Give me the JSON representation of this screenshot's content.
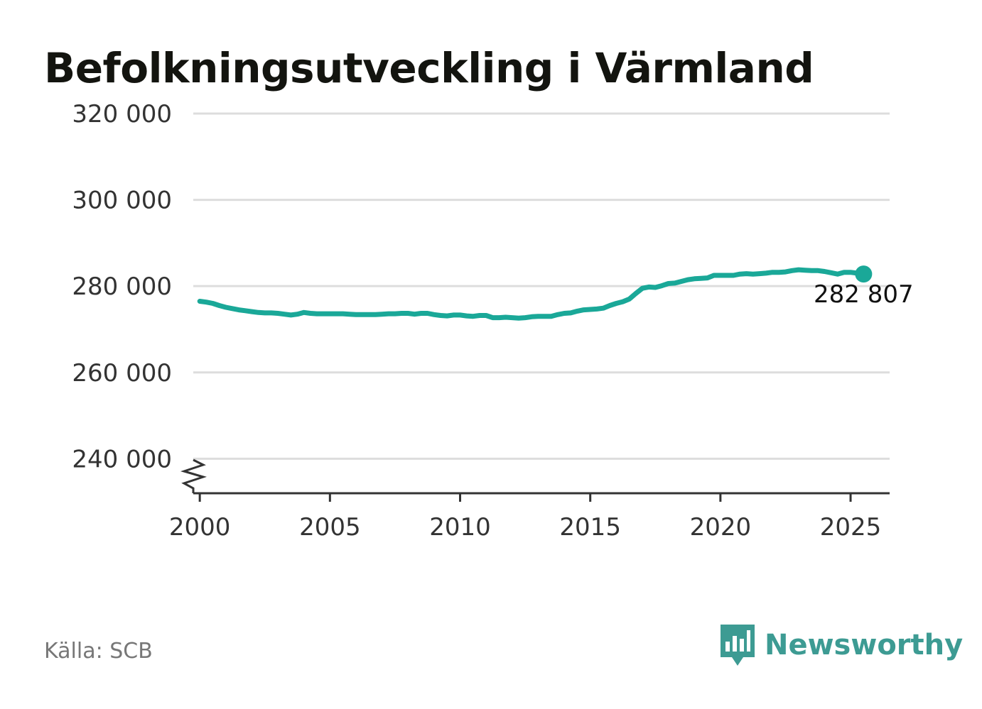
{
  "title": "Befolkningsutveckling i Värmland",
  "source": "Källa: SCB",
  "brand": {
    "name": "Newsworthy",
    "color": "#3d9b93",
    "icon": "newsworthy-logo-icon"
  },
  "colors": {
    "line": "#1aa898",
    "grid": "#dddddd",
    "axis": "#333333"
  },
  "chart_data": {
    "type": "line",
    "title": "Befolkningsutveckling i Värmland",
    "xlabel": "",
    "ylabel": "",
    "xlim": [
      1999.75,
      2026.5
    ],
    "ylim": [
      232000,
      320000
    ],
    "y_axis_break": true,
    "grid": true,
    "x_ticks": [
      2000,
      2005,
      2010,
      2015,
      2020,
      2025
    ],
    "x_tick_labels": [
      "2000",
      "2005",
      "2010",
      "2015",
      "2020",
      "2025"
    ],
    "y_ticks": [
      240000,
      260000,
      280000,
      300000,
      320000
    ],
    "y_tick_labels": [
      "240 000",
      "260 000",
      "280 000",
      "300 000",
      "320 000"
    ],
    "end_label": "282 807",
    "series": [
      {
        "values": [
          [
            2000.0,
            276500
          ],
          [
            2000.25,
            276300
          ],
          [
            2000.5,
            276000
          ],
          [
            2000.75,
            275500
          ],
          [
            2001.0,
            275100
          ],
          [
            2001.25,
            274800
          ],
          [
            2001.5,
            274500
          ],
          [
            2001.75,
            274300
          ],
          [
            2002.0,
            274100
          ],
          [
            2002.25,
            273900
          ],
          [
            2002.5,
            273800
          ],
          [
            2002.75,
            273800
          ],
          [
            2003.0,
            273700
          ],
          [
            2003.25,
            273500
          ],
          [
            2003.5,
            273300
          ],
          [
            2003.75,
            273500
          ],
          [
            2004.0,
            273900
          ],
          [
            2004.25,
            273700
          ],
          [
            2004.5,
            273600
          ],
          [
            2004.75,
            273600
          ],
          [
            2005.0,
            273600
          ],
          [
            2005.25,
            273600
          ],
          [
            2005.5,
            273600
          ],
          [
            2005.75,
            273500
          ],
          [
            2006.0,
            273400
          ],
          [
            2006.25,
            273400
          ],
          [
            2006.5,
            273400
          ],
          [
            2006.75,
            273400
          ],
          [
            2007.0,
            273500
          ],
          [
            2007.25,
            273600
          ],
          [
            2007.5,
            273600
          ],
          [
            2007.75,
            273700
          ],
          [
            2008.0,
            273700
          ],
          [
            2008.25,
            273500
          ],
          [
            2008.5,
            273700
          ],
          [
            2008.75,
            273700
          ],
          [
            2009.0,
            273400
          ],
          [
            2009.25,
            273200
          ],
          [
            2009.5,
            273100
          ],
          [
            2009.75,
            273300
          ],
          [
            2010.0,
            273300
          ],
          [
            2010.25,
            273100
          ],
          [
            2010.5,
            273000
          ],
          [
            2010.75,
            273200
          ],
          [
            2011.0,
            273200
          ],
          [
            2011.25,
            272700
          ],
          [
            2011.5,
            272700
          ],
          [
            2011.75,
            272800
          ],
          [
            2012.0,
            272700
          ],
          [
            2012.25,
            272600
          ],
          [
            2012.5,
            272700
          ],
          [
            2012.75,
            272900
          ],
          [
            2013.0,
            273000
          ],
          [
            2013.25,
            273000
          ],
          [
            2013.5,
            273000
          ],
          [
            2013.75,
            273400
          ],
          [
            2014.0,
            273700
          ],
          [
            2014.25,
            273800
          ],
          [
            2014.5,
            274200
          ],
          [
            2014.75,
            274500
          ],
          [
            2015.0,
            274600
          ],
          [
            2015.25,
            274700
          ],
          [
            2015.5,
            274900
          ],
          [
            2015.75,
            275500
          ],
          [
            2016.0,
            276000
          ],
          [
            2016.25,
            276400
          ],
          [
            2016.5,
            277000
          ],
          [
            2016.75,
            278300
          ],
          [
            2017.0,
            279500
          ],
          [
            2017.25,
            279800
          ],
          [
            2017.5,
            279700
          ],
          [
            2017.75,
            280100
          ],
          [
            2018.0,
            280600
          ],
          [
            2018.25,
            280700
          ],
          [
            2018.5,
            281100
          ],
          [
            2018.75,
            281500
          ],
          [
            2019.0,
            281700
          ],
          [
            2019.25,
            281800
          ],
          [
            2019.5,
            281900
          ],
          [
            2019.75,
            282500
          ],
          [
            2020.0,
            282500
          ],
          [
            2020.25,
            282500
          ],
          [
            2020.5,
            282500
          ],
          [
            2020.75,
            282800
          ],
          [
            2021.0,
            282900
          ],
          [
            2021.25,
            282800
          ],
          [
            2021.5,
            282900
          ],
          [
            2021.75,
            283000
          ],
          [
            2022.0,
            283200
          ],
          [
            2022.25,
            283200
          ],
          [
            2022.5,
            283300
          ],
          [
            2022.75,
            283600
          ],
          [
            2023.0,
            283800
          ],
          [
            2023.25,
            283700
          ],
          [
            2023.5,
            283600
          ],
          [
            2023.75,
            283600
          ],
          [
            2024.0,
            283400
          ],
          [
            2024.25,
            283100
          ],
          [
            2024.5,
            282800
          ],
          [
            2024.75,
            283200
          ],
          [
            2025.0,
            283200
          ],
          [
            2025.25,
            283000
          ],
          [
            2025.5,
            282807
          ]
        ]
      }
    ]
  }
}
